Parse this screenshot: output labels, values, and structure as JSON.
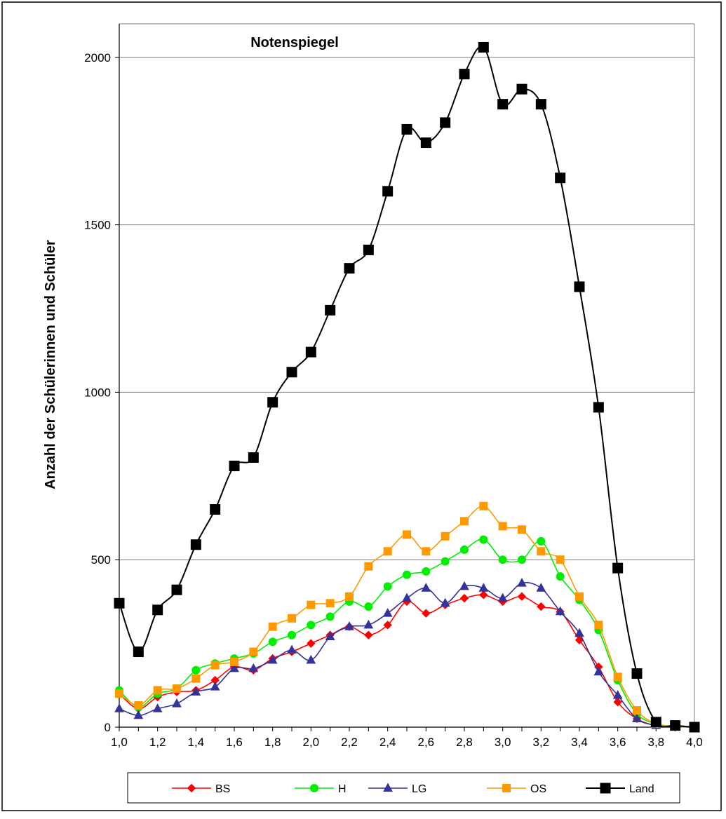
{
  "chart_data": {
    "type": "line",
    "title": "Notenspiegel",
    "xlabel": "",
    "ylabel": "Anzahl der Schülerinnen und Schüler",
    "x": [
      1.0,
      1.1,
      1.2,
      1.3,
      1.4,
      1.5,
      1.6,
      1.7,
      1.8,
      1.9,
      2.0,
      2.1,
      2.2,
      2.3,
      2.4,
      2.5,
      2.6,
      2.7,
      2.8,
      2.9,
      3.0,
      3.1,
      3.2,
      3.3,
      3.4,
      3.5,
      3.6,
      3.7,
      3.8,
      3.9,
      4.0
    ],
    "xticks": [
      "1,0",
      "1,2",
      "1,4",
      "1,6",
      "1,8",
      "2,0",
      "2,2",
      "2,4",
      "2,6",
      "2,8",
      "3,0",
      "3,2",
      "3,4",
      "3,6",
      "3,8",
      "4,0"
    ],
    "xtick_values": [
      1.0,
      1.2,
      1.4,
      1.6,
      1.8,
      2.0,
      2.2,
      2.4,
      2.6,
      2.8,
      3.0,
      3.2,
      3.4,
      3.6,
      3.8,
      4.0
    ],
    "yticks": [
      "0",
      "500",
      "1000",
      "1500",
      "2000"
    ],
    "ytick_values": [
      0,
      500,
      1000,
      1500,
      2000
    ],
    "xlim": [
      1.0,
      4.0
    ],
    "ylim": [
      0,
      2100
    ],
    "grid": "horizontal",
    "legend_position": "bottom",
    "series": [
      {
        "name": "BS",
        "color": "#ff0000",
        "marker": "diamond",
        "values": [
          100,
          55,
          90,
          105,
          110,
          140,
          180,
          170,
          205,
          225,
          250,
          275,
          300,
          275,
          305,
          375,
          340,
          365,
          385,
          395,
          375,
          390,
          360,
          345,
          260,
          180,
          75,
          25,
          5,
          2,
          0
        ]
      },
      {
        "name": "H",
        "color": "#00ee00",
        "marker": "circle",
        "values": [
          110,
          60,
          100,
          115,
          170,
          190,
          205,
          220,
          255,
          275,
          305,
          330,
          375,
          360,
          420,
          455,
          465,
          495,
          530,
          560,
          500,
          500,
          555,
          450,
          380,
          290,
          140,
          40,
          10,
          2,
          0
        ]
      },
      {
        "name": "LG",
        "color": "#333399",
        "marker": "triangle",
        "values": [
          55,
          35,
          55,
          70,
          105,
          120,
          175,
          175,
          200,
          230,
          200,
          270,
          300,
          305,
          340,
          385,
          415,
          370,
          420,
          415,
          385,
          430,
          415,
          345,
          280,
          165,
          95,
          25,
          5,
          2,
          0
        ]
      },
      {
        "name": "OS",
        "color": "#ff9900",
        "marker": "square",
        "values": [
          100,
          65,
          110,
          115,
          145,
          185,
          195,
          225,
          300,
          325,
          365,
          370,
          390,
          480,
          525,
          575,
          525,
          570,
          615,
          660,
          600,
          590,
          525,
          500,
          390,
          305,
          150,
          50,
          10,
          2,
          0
        ]
      },
      {
        "name": "Land",
        "color": "#000000",
        "marker": "square",
        "values": [
          370,
          225,
          350,
          410,
          545,
          650,
          780,
          805,
          970,
          1060,
          1120,
          1245,
          1370,
          1425,
          1600,
          1785,
          1745,
          1805,
          1950,
          2030,
          1860,
          1905,
          1860,
          1640,
          1315,
          955,
          475,
          160,
          15,
          5,
          0
        ]
      }
    ]
  }
}
